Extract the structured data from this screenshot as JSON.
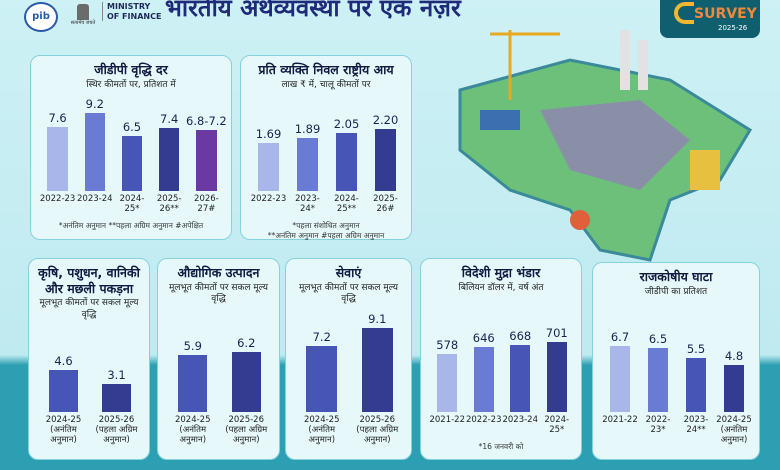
{
  "header": {
    "org": "MINISTRY OF FINANCE",
    "pib": "pib",
    "emblem_text": "सत्यमेव जयते",
    "title": "भारतीय अर्थव्यवस्था पर एक नज़र",
    "survey": "SURVEY",
    "year": "2025-26"
  },
  "chart_data": [
    {
      "type": "bar",
      "title": "जीडीपी वृद्धि दर",
      "subtitle": "स्थिर कीमतों पर, प्रतिशत में",
      "categories": [
        "2022-23",
        "2023-24",
        "2024-25*",
        "2025-26**",
        "2026-27#"
      ],
      "values": [
        7.6,
        9.2,
        6.5,
        7.4,
        7.2
      ],
      "value_labels": [
        "7.6",
        "9.2",
        "6.5",
        "7.4",
        "6.8-7.2"
      ],
      "colors": [
        "#a9b6ea",
        "#6a7bd3",
        "#4655b6",
        "#343c92",
        "#6a3aa2"
      ],
      "footnotes": [
        "*अनंतिम अनुमान **पहला अग्रिम अनुमान #अपेक्षित"
      ]
    },
    {
      "type": "bar",
      "title": "प्रति व्यक्ति निवल राष्ट्रीय आय",
      "subtitle": "लाख ₹ में, चालू कीमतों पर",
      "categories": [
        "2022-23",
        "2023-24*",
        "2024-25**",
        "2025-26#"
      ],
      "values": [
        1.69,
        1.89,
        2.05,
        2.2
      ],
      "value_labels": [
        "1.69",
        "1.89",
        "2.05",
        "2.20"
      ],
      "colors": [
        "#a9b6ea",
        "#6a7bd3",
        "#4655b6",
        "#343c92"
      ],
      "footnotes": [
        "*पहला संशोधित अनुमान",
        "**अनंतिम अनुमान #पहला अग्रिम अनुमान"
      ]
    },
    {
      "type": "bar",
      "title": "कृषि, पशुधन, वानिकी और मछली पकड़ना",
      "subtitle": "मूलभूत कीमतों पर सकल मूल्य वृद्धि",
      "categories": [
        "2024-25 (अनंतिम अनुमान)",
        "2025-26 (पहला अग्रिम अनुमान)"
      ],
      "values": [
        4.6,
        3.1
      ],
      "colors": [
        "#4655b6",
        "#343c92"
      ]
    },
    {
      "type": "bar",
      "title": "औद्योगिक उत्पादन",
      "subtitle": "मूलभूत कीमतों पर सकल मूल्य वृद्धि",
      "categories": [
        "2024-25 (अनंतिम अनुमान)",
        "2025-26 (पहला अग्रिम अनुमान)"
      ],
      "values": [
        5.9,
        6.2
      ],
      "colors": [
        "#4655b6",
        "#343c92"
      ]
    },
    {
      "type": "bar",
      "title": "सेवाएं",
      "subtitle": "मूलभूत कीमतों पर सकल मूल्य वृद्धि",
      "categories": [
        "2024-25 (अनंतिम अनुमान)",
        "2025-26 (पहला अग्रिम अनुमान)"
      ],
      "values": [
        7.2,
        9.1
      ],
      "colors": [
        "#4655b6",
        "#343c92"
      ]
    },
    {
      "type": "bar",
      "title": "विदेशी मुद्रा भंडार",
      "subtitle": "बिलियन डॉलर में, वर्ष अंत",
      "categories": [
        "2021-22",
        "2022-23",
        "2023-24",
        "2024-25*"
      ],
      "values": [
        578,
        646,
        668,
        701
      ],
      "colors": [
        "#a9b6ea",
        "#6a7bd3",
        "#4655b6",
        "#343c92"
      ],
      "footnotes": [
        "*16 जनवरी को"
      ]
    },
    {
      "type": "bar",
      "title": "राजकोषीय घाटा",
      "subtitle": "जीडीपी का प्रतिशत",
      "categories": [
        "2021-22",
        "2022-23*",
        "2023-24**",
        "2024-25 (अनंतिम अनुमान)"
      ],
      "values": [
        6.7,
        6.5,
        5.5,
        4.8
      ],
      "colors": [
        "#a9b6ea",
        "#6a7bd3",
        "#4655b6",
        "#343c92"
      ]
    }
  ]
}
